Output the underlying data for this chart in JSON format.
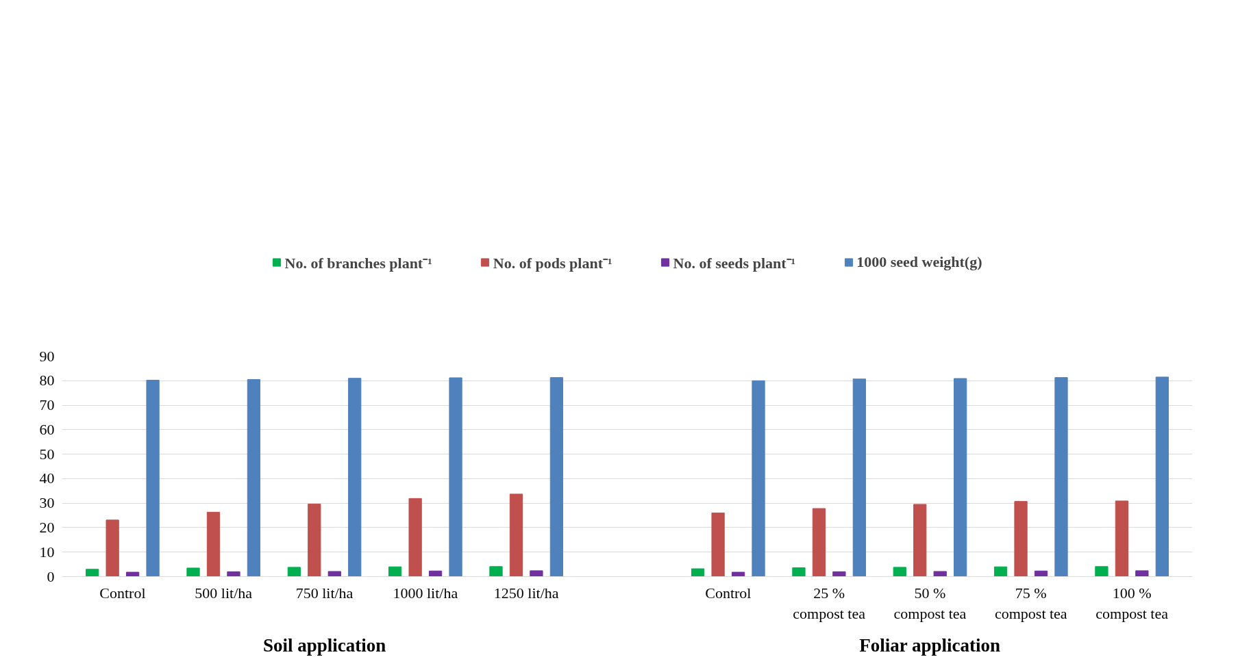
{
  "chart_data": {
    "type": "bar",
    "categories": [
      "Control",
      "500 lit/ha",
      "750 lit/ha",
      "1000 lit/ha",
      "1250 lit/ha",
      null,
      "Control",
      "25 %\ncompost tea",
      "50 %\ncompost tea",
      "75 %\ncompost tea",
      "100 %\ncompost tea"
    ],
    "series": [
      {
        "name": "No. of branches plant⁻¹",
        "color": "#00b050",
        "values": [
          3.0,
          3.5,
          3.8,
          4.0,
          4.1,
          null,
          3.2,
          3.6,
          3.8,
          4.0,
          4.1
        ]
      },
      {
        "name": "No. of pods plant⁻¹",
        "color": "#c0504d",
        "values": [
          23.1,
          26.3,
          29.6,
          31.9,
          33.7,
          null,
          26.0,
          27.8,
          29.5,
          30.7,
          30.9
        ]
      },
      {
        "name": "No. of seeds plant⁻¹",
        "color": "#7030a0",
        "values": [
          1.8,
          2.0,
          2.1,
          2.3,
          2.4,
          null,
          1.8,
          2.0,
          2.1,
          2.3,
          2.4
        ]
      },
      {
        "name": "1000 seed weight(g)",
        "color": "#4f81bd",
        "values": [
          80.2,
          80.5,
          81.0,
          81.2,
          81.3,
          null,
          80.0,
          80.7,
          80.9,
          81.3,
          81.5
        ]
      }
    ],
    "ylim": [
      0,
      90
    ],
    "yticks": [
      0,
      10,
      20,
      30,
      40,
      50,
      60,
      70,
      80,
      90
    ],
    "grid": "y",
    "legend": "top",
    "annotations": [
      "Soil application",
      "Foliar application"
    ]
  }
}
